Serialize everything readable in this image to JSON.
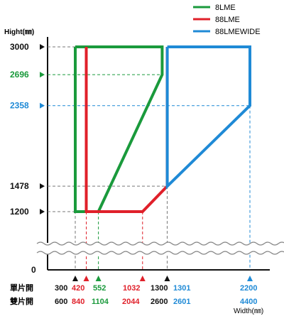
{
  "chart_data": {
    "type": "line",
    "ylabel": "Hight(㎜)",
    "xlabel": "Width(㎜)",
    "colors": {
      "8LME": "#1a9a3c",
      "88LME": "#e0202a",
      "88LMEWIDE": "#1f8ad6",
      "axis": "#111111",
      "text": "#111111"
    },
    "legend": {
      "placement": "top-right",
      "items": [
        {
          "name": "8LME",
          "color": "#1a9a3c"
        },
        {
          "name": "88LME",
          "color": "#e0202a"
        },
        {
          "name": "88LMEWIDE",
          "color": "#1f8ad6"
        }
      ]
    },
    "y_ticks": [
      {
        "value": 3000,
        "label": "3000",
        "color": "#111111"
      },
      {
        "value": 2696,
        "label": "2696",
        "color": "#1a9a3c"
      },
      {
        "value": 2358,
        "label": "2358",
        "color": "#1f8ad6"
      },
      {
        "value": 1478,
        "label": "1478",
        "color": "#111111"
      },
      {
        "value": 1200,
        "label": "1200",
        "color": "#111111"
      },
      {
        "value": 0,
        "label": "0",
        "color": "#111111"
      }
    ],
    "x_rows": {
      "single_label": "單片開",
      "double_label": "雙片開"
    },
    "x_ticks": [
      {
        "value": 300,
        "single": "300",
        "double": "600",
        "color": "#111111"
      },
      {
        "value": 420,
        "single": "420",
        "double": "840",
        "color": "#e0202a"
      },
      {
        "value": 552,
        "single": "552",
        "double": "1104",
        "color": "#1a9a3c"
      },
      {
        "value": 1032,
        "single": "1032",
        "double": "2044",
        "color": "#e0202a"
      },
      {
        "value": 1300,
        "single": "1300",
        "double": "2600",
        "color": "#111111"
      },
      {
        "value": 1301,
        "single": "1301",
        "double": "2601",
        "color": "#1f8ad6"
      },
      {
        "value": 2200,
        "single": "2200",
        "double": "4400",
        "color": "#1f8ad6"
      }
    ],
    "series": [
      {
        "name": "8LME",
        "color": "#1a9a3c",
        "points": [
          [
            300,
            3000
          ],
          [
            300,
            1200
          ],
          [
            552,
            1200
          ],
          [
            1245,
            2696
          ],
          [
            1245,
            3000
          ],
          [
            300,
            3000
          ]
        ]
      },
      {
        "name": "88LME",
        "color": "#e0202a",
        "points": [
          [
            420,
            3000
          ],
          [
            420,
            1200
          ],
          [
            1032,
            1200
          ],
          [
            1300,
            1478
          ],
          [
            1300,
            3000
          ]
        ]
      },
      {
        "name": "88LMEWIDE",
        "color": "#1f8ad6",
        "points": [
          [
            1301,
            3000
          ],
          [
            1301,
            1478
          ],
          [
            2200,
            2358
          ],
          [
            2200,
            3000
          ],
          [
            1301,
            3000
          ]
        ]
      }
    ]
  }
}
